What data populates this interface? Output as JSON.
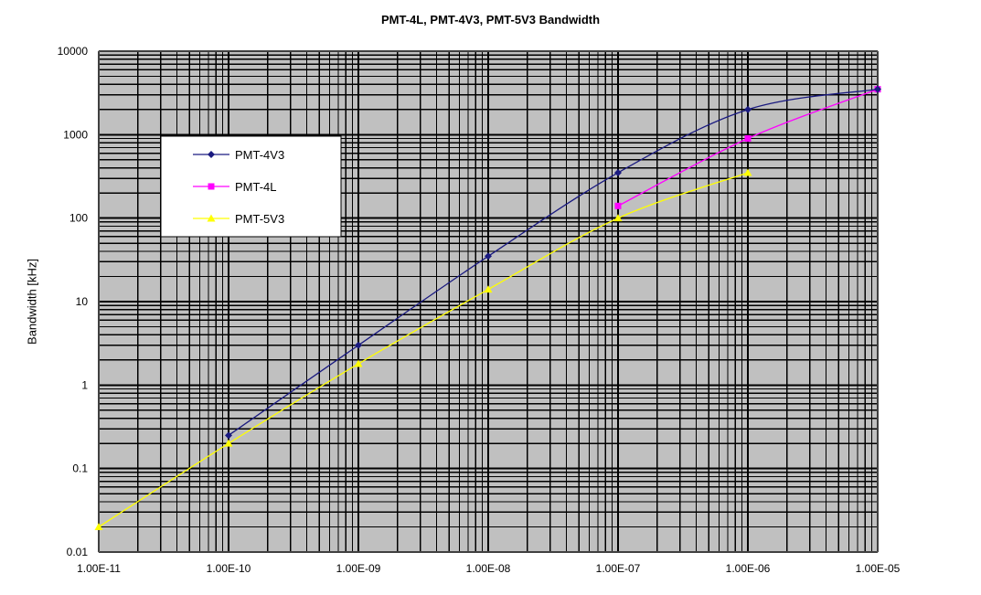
{
  "chart_data": {
    "type": "line",
    "title": "PMT-4L, PMT-4V3, PMT-5V3 Bandwidth",
    "xlabel": "",
    "ylabel": "Bandwidth [kHz]",
    "x_scale": "log",
    "y_scale": "log",
    "xlim": [
      1e-11,
      1e-05
    ],
    "ylim": [
      0.01,
      10000
    ],
    "x_tick_values": [
      1e-11,
      1e-10,
      1e-09,
      1e-08,
      1e-07,
      1e-06,
      1e-05
    ],
    "x_tick_labels": [
      "1.00E-11",
      "1.00E-10",
      "1.00E-09",
      "1.00E-08",
      "1.00E-07",
      "1.00E-06",
      "1.00E-05"
    ],
    "y_tick_values": [
      0.01,
      0.1,
      1,
      10,
      100,
      1000,
      10000
    ],
    "y_tick_labels": [
      "0.01",
      "0.1",
      "1",
      "10",
      "100",
      "1000",
      "10000"
    ],
    "grid": true,
    "legend_position": "top-left",
    "background_color": "#c0c0c0",
    "grid_color": "#000000",
    "series": [
      {
        "name": "PMT-4V3",
        "color": "#1a1a80",
        "marker": "diamond",
        "x": [
          1e-10,
          1e-09,
          1e-08,
          1e-07,
          1e-06,
          1e-05
        ],
        "y": [
          0.25,
          3,
          35,
          350,
          2000,
          3500
        ]
      },
      {
        "name": "PMT-4L",
        "color": "#ff00ff",
        "marker": "square",
        "x": [
          1e-07,
          1e-06,
          1e-05
        ],
        "y": [
          140,
          900,
          3500
        ]
      },
      {
        "name": "PMT-5V3",
        "color": "#ffff00",
        "marker": "triangle",
        "x": [
          1e-11,
          1e-10,
          1e-09,
          1e-08,
          1e-07,
          1e-06
        ],
        "y": [
          0.02,
          0.2,
          1.8,
          14,
          100,
          350
        ]
      }
    ]
  }
}
